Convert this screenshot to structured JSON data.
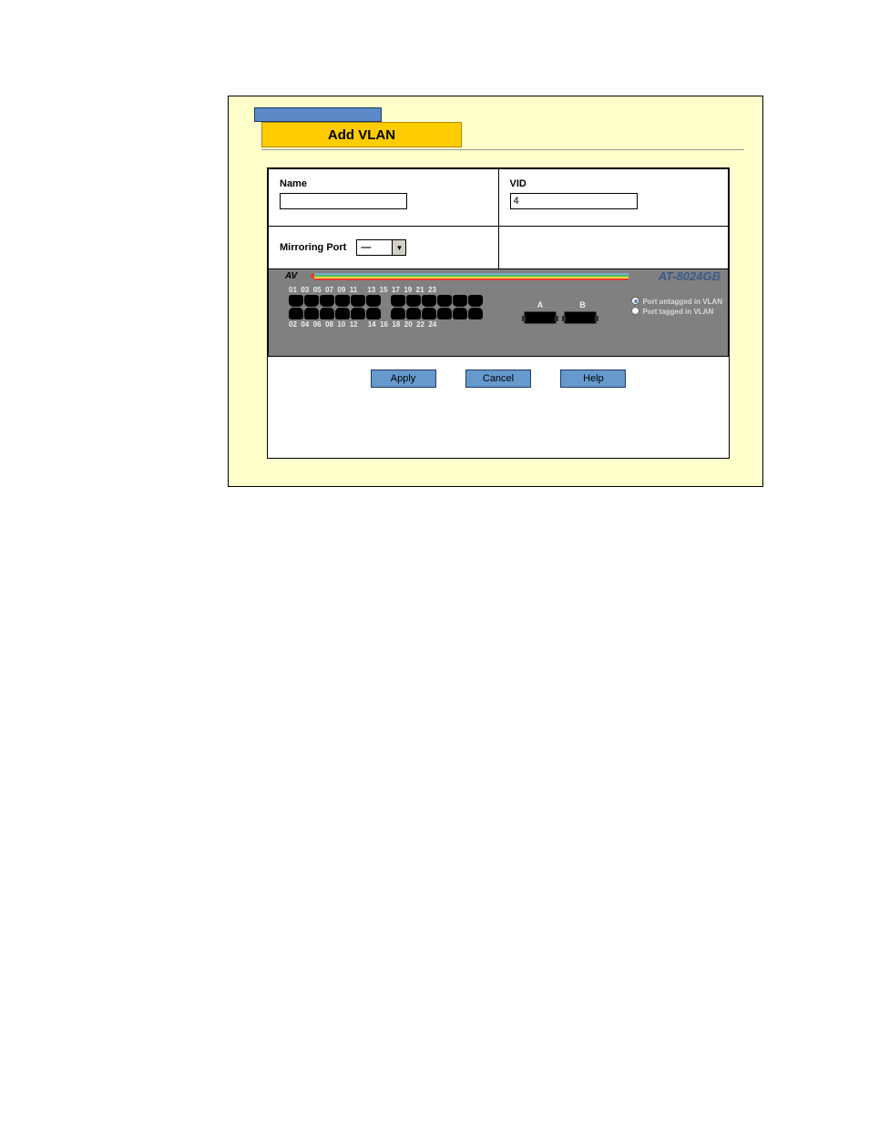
{
  "header": {
    "title": "Add VLAN"
  },
  "form": {
    "name_label": "Name",
    "name_value": "",
    "vid_label": "VID",
    "vid_value": "4",
    "mirroring_label": "Mirroring Port",
    "mirroring_value": "—"
  },
  "switch": {
    "model": "AT-8024GB",
    "logo_text": "AV",
    "top_ports": [
      "01",
      "03",
      "05",
      "07",
      "09",
      "11",
      "13",
      "15",
      "17",
      "19",
      "21",
      "23"
    ],
    "bottom_ports": [
      "02",
      "04",
      "06",
      "08",
      "10",
      "12",
      "14",
      "16",
      "18",
      "20",
      "22",
      "24"
    ],
    "uplink_labels": [
      "A",
      "B"
    ],
    "radio_options": [
      {
        "label": "Port untagged in VLAN",
        "selected": true
      },
      {
        "label": "Port tagged in VLAN",
        "selected": false
      }
    ],
    "colors": {
      "panel_bg": "#808080",
      "rainbow": [
        "#7aa8d4",
        "#4dbf5a",
        "#f4d441",
        "#e23a3a"
      ]
    }
  },
  "buttons": {
    "apply": "Apply",
    "cancel": "Cancel",
    "help": "Help"
  },
  "layout": {
    "outer_bg": "#ffffcc",
    "header_bg": "#ffcc00",
    "btn_bg": "#6699cc"
  }
}
